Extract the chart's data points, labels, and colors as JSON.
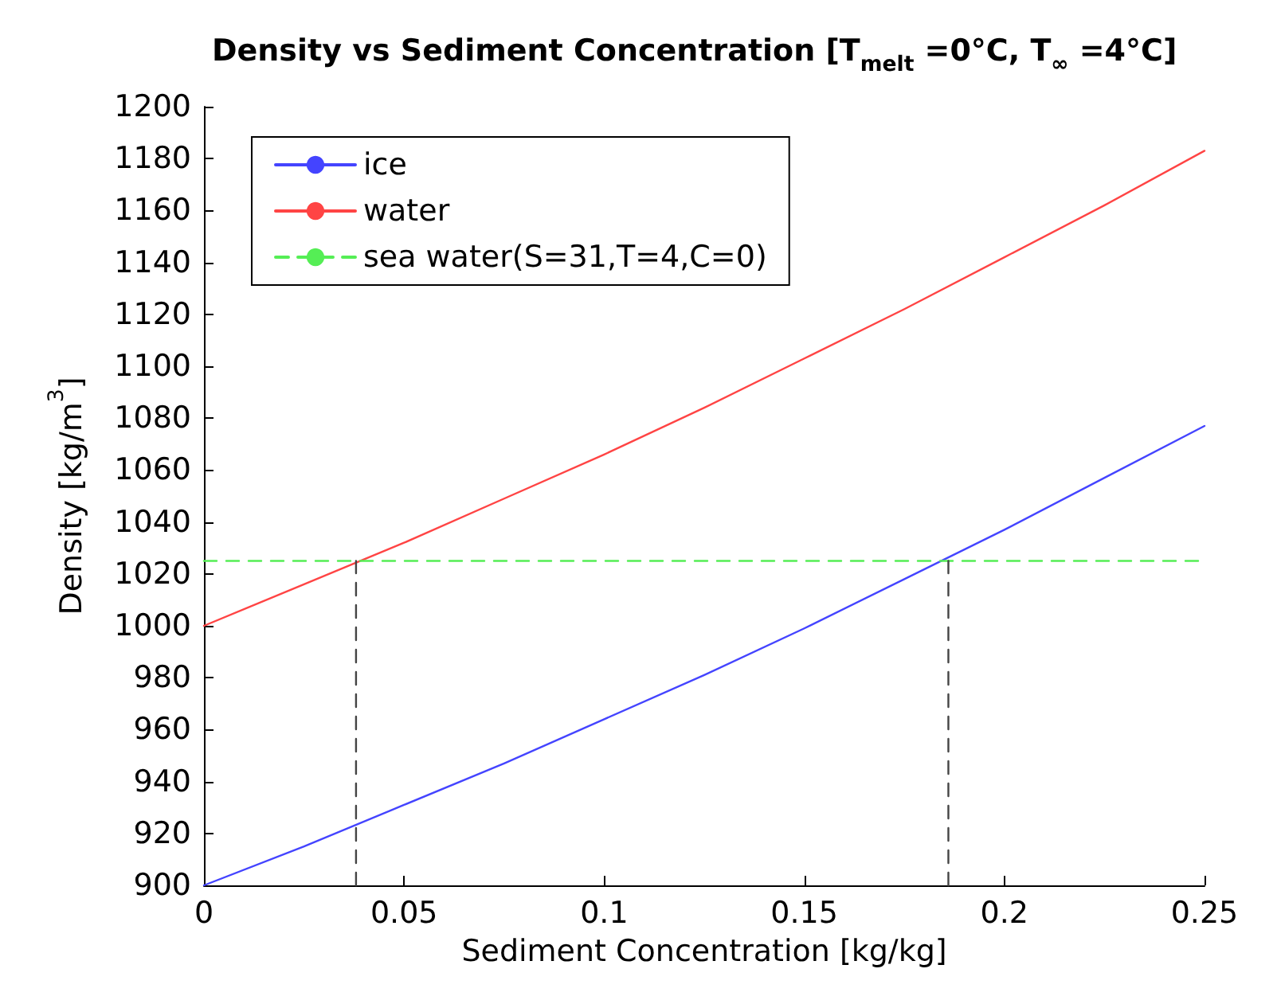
{
  "chart_data": {
    "type": "line",
    "title": "Density vs Sediment Concentration [T$_{melt}$ =0°C, T$_{∞}$ =4°C]",
    "xlabel": "Sediment Concentration [kg/kg]",
    "ylabel": "Density [kg/m$^{3}$]",
    "x": [
      0,
      0.025,
      0.05,
      0.075,
      0.1,
      0.125,
      0.15,
      0.175,
      0.2,
      0.225,
      0.25
    ],
    "series": [
      {
        "name": "ice",
        "color": "#4444ff",
        "values": [
          900,
          915,
          931,
          947,
          964,
          981,
          999,
          1018,
          1037,
          1057,
          1077
        ]
      },
      {
        "name": "water",
        "color": "#ff4444",
        "values": [
          1000,
          1016,
          1032,
          1049,
          1066,
          1084,
          1103,
          1122,
          1142,
          1162,
          1183
        ]
      },
      {
        "name": "sea water(S=31,T=4,C=0)",
        "color": "#55ee55",
        "line_style": "dashed",
        "x": [
          0,
          0.25
        ],
        "values": [
          1025,
          1025
        ]
      },
      {
        "color": "#444444",
        "line_style": "dashed",
        "x": [
          0.038,
          0.038
        ],
        "values": [
          900,
          1025
        ]
      },
      {
        "color": "#444444",
        "line_style": "dashed",
        "x": [
          0.186,
          0.186
        ],
        "values": [
          900,
          1025
        ]
      }
    ],
    "xlim": [
      0,
      0.25
    ],
    "xticks": [
      0,
      0.05,
      0.1,
      0.15,
      0.2,
      0.25
    ],
    "ylim": [
      900,
      1200
    ],
    "yticks": [
      900,
      920,
      940,
      960,
      980,
      1000,
      1020,
      1040,
      1060,
      1080,
      1100,
      1120,
      1140,
      1160,
      1180,
      1200
    ],
    "grid": false,
    "legend": "top left",
    "marker": "none",
    "line_style": "solid"
  }
}
